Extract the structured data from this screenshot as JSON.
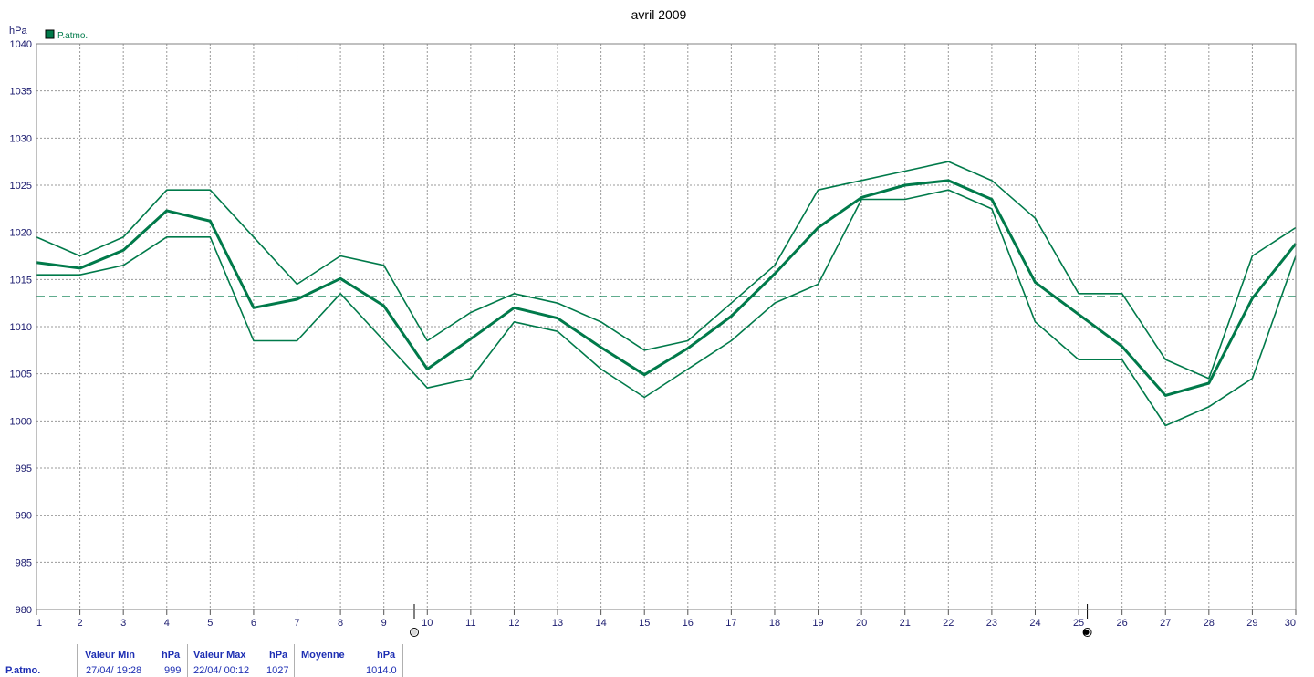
{
  "chart_data": {
    "type": "line",
    "title": "avril 2009",
    "ylabel": "hPa",
    "ylim": [
      980,
      1040
    ],
    "y_ticks": [
      980,
      985,
      990,
      995,
      1000,
      1005,
      1010,
      1015,
      1020,
      1025,
      1030,
      1035,
      1040
    ],
    "x": [
      1,
      2,
      3,
      4,
      5,
      6,
      7,
      8,
      9,
      10,
      11,
      12,
      13,
      14,
      15,
      16,
      17,
      18,
      19,
      20,
      21,
      22,
      23,
      24,
      25,
      26,
      27,
      28,
      29,
      30
    ],
    "xlim": [
      1,
      30
    ],
    "grid": true,
    "legend": {
      "position": "top-left",
      "entries": [
        "P.atmo."
      ]
    },
    "reference_line": {
      "value": 1013.2,
      "style": "dashed"
    },
    "moon_phase_markers": [
      {
        "x": 9.7,
        "phase": "full-moon"
      },
      {
        "x": 25.2,
        "phase": "new-moon"
      }
    ],
    "colors": {
      "series": "#007a4a",
      "grid": "#9a9a9a",
      "tick_text": "#1a1a6e"
    },
    "series": [
      {
        "role": "max",
        "values": [
          1019.5,
          1017.5,
          1019.5,
          1024.5,
          1024.5,
          1019.5,
          1014.5,
          1017.5,
          1016.5,
          1008.5,
          1011.5,
          1013.5,
          1012.5,
          1010.5,
          1007.5,
          1008.5,
          1012.5,
          1016.5,
          1024.5,
          1025.5,
          1026.5,
          1027.5,
          1025.5,
          1021.5,
          1013.5,
          1013.5,
          1006.5,
          1004.5,
          1017.5,
          1020.5
        ]
      },
      {
        "role": "mean",
        "name": "P.atmo.",
        "values": [
          1016.8,
          1016.2,
          1018.1,
          1022.3,
          1021.2,
          1012,
          1012.9,
          1015.1,
          1012.2,
          1005.5,
          1008.7,
          1012,
          1010.9,
          1007.8,
          1004.9,
          1007.7,
          1011.1,
          1015.6,
          1020.5,
          1023.7,
          1025,
          1025.5,
          1023.5,
          1014.7,
          1011.3,
          1007.9,
          1002.7,
          1004,
          1013,
          1018.8
        ]
      },
      {
        "role": "min",
        "values": [
          1015.5,
          1015.5,
          1016.5,
          1019.5,
          1019.5,
          1008.5,
          1008.5,
          1013.5,
          1008.5,
          1003.5,
          1004.5,
          1010.5,
          1009.5,
          1005.5,
          1002.5,
          1005.5,
          1008.5,
          1012.5,
          1014.5,
          1023.5,
          1023.5,
          1024.5,
          1022.5,
          1010.5,
          1006.5,
          1006.5,
          999.5,
          1001.5,
          1004.5,
          1017.5
        ]
      }
    ]
  },
  "summary_table": {
    "row_label": "P.atmo.",
    "min_header": "Valeur Min",
    "min_unit": "hPa",
    "min_date": "27/04/  19:28",
    "min_value": "999",
    "max_header": "Valeur Max",
    "max_unit": "hPa",
    "max_date": "22/04/  00:12",
    "max_value": "1027",
    "avg_header": "Moyenne",
    "avg_unit": "hPa",
    "avg_value": "1014.0"
  }
}
